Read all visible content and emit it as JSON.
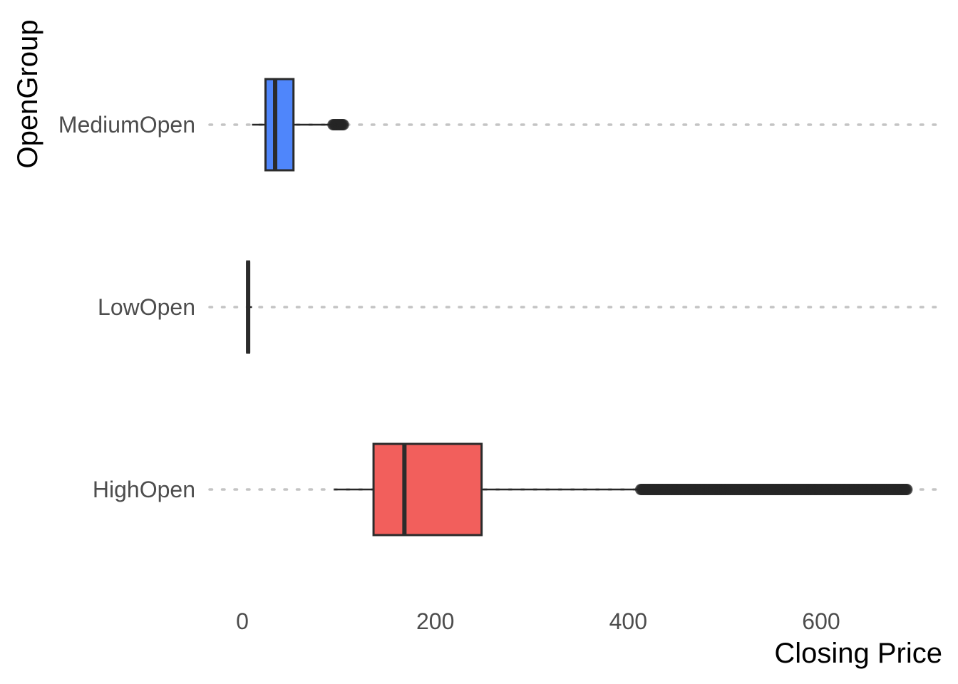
{
  "chart_data": {
    "type": "boxplot",
    "orientation": "horizontal",
    "title": "",
    "xlabel": "Closing Price",
    "ylabel": "OpenGroup",
    "xlim": [
      -20,
      726
    ],
    "x_ticks": [
      0,
      200,
      400,
      600
    ],
    "x_tick_labels": [
      "0",
      "200",
      "400",
      "600"
    ],
    "grid": "major y gridlines dotted",
    "legend": "none",
    "categories": [
      "MediumOpen",
      "LowOpen",
      "HighOpen"
    ],
    "series": [
      {
        "group": "MediumOpen",
        "color": "#4f86fb",
        "whisker_low": 10,
        "q1": 24,
        "median": 34,
        "q3": 53,
        "whisker_high": 92,
        "outlier_range": [
          94,
          105
        ]
      },
      {
        "group": "LowOpen",
        "color": "#f8766d",
        "whisker_low": 4,
        "q1": 5,
        "median": 6,
        "q3": 7,
        "whisker_high": 10,
        "outlier_range": null
      },
      {
        "group": "HighOpen",
        "color": "#f25f5c",
        "whisker_low": 95,
        "q1": 136,
        "median": 168,
        "q3": 248,
        "whisker_high": 412,
        "outlier_range": [
          413,
          690
        ]
      }
    ]
  }
}
